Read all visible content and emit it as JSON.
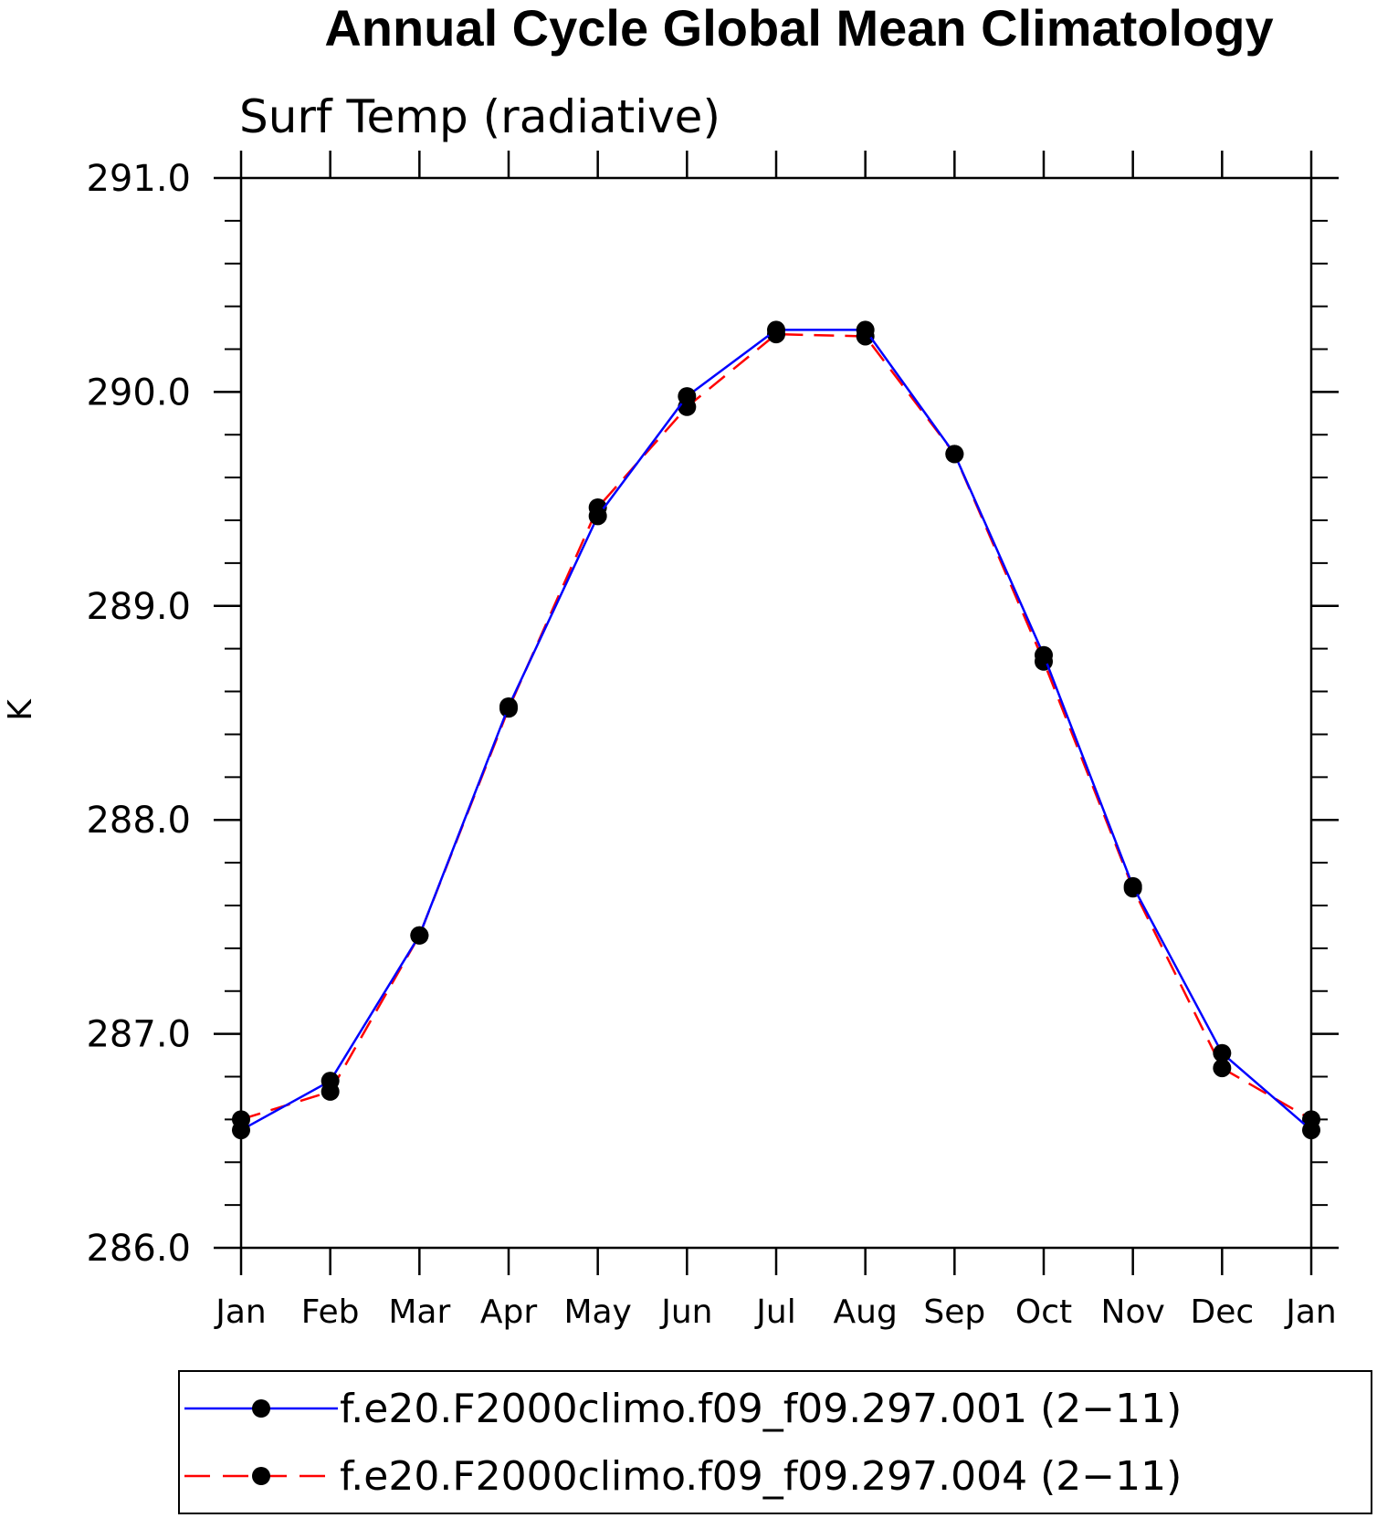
{
  "chart_data": {
    "type": "line",
    "title": "Annual Cycle Global Mean Climatology",
    "subtitle": "Surf Temp (radiative)",
    "xlabel": "",
    "ylabel": "K",
    "categories": [
      "Jan",
      "Feb",
      "Mar",
      "Apr",
      "May",
      "Jun",
      "Jul",
      "Aug",
      "Sep",
      "Oct",
      "Nov",
      "Dec",
      "Jan"
    ],
    "ylim": [
      286.0,
      291.0
    ],
    "yticks": [
      "286.0",
      "287.0",
      "288.0",
      "289.0",
      "290.0",
      "291.0"
    ],
    "grid": false,
    "legend_position": "bottom",
    "series": [
      {
        "name": "f.e20.F2000climo.f09_f09.297.001 (2−11)",
        "color": "#0000ff",
        "line_style": "solid",
        "marker": "filled-circle",
        "values": [
          286.55,
          286.78,
          287.46,
          288.53,
          289.42,
          289.98,
          290.29,
          290.29,
          289.71,
          288.77,
          287.69,
          286.91,
          286.55
        ]
      },
      {
        "name": "f.e20.F2000climo.f09_f09.297.004 (2−11)",
        "color": "#ff0000",
        "line_style": "dashed",
        "marker": "filled-circle",
        "values": [
          286.6,
          286.73,
          287.46,
          288.52,
          289.46,
          289.93,
          290.27,
          290.26,
          289.71,
          288.74,
          287.68,
          286.84,
          286.6
        ]
      }
    ]
  }
}
